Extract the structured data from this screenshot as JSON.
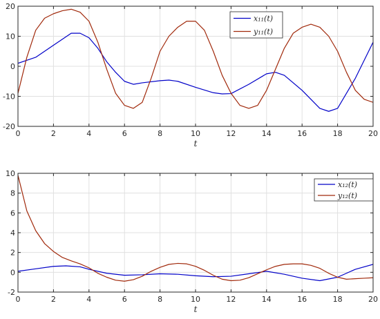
{
  "chart_data": [
    {
      "type": "line",
      "xlabel": "t",
      "ylabel": "",
      "xlim": [
        0,
        20
      ],
      "ylim": [
        -20,
        20
      ],
      "xticks": [
        0,
        2,
        4,
        6,
        8,
        10,
        12,
        14,
        16,
        18,
        20
      ],
      "yticks": [
        -20,
        -10,
        0,
        10,
        20
      ],
      "grid": true,
      "legend_position": "top-right",
      "series": [
        {
          "name": "x₁₁(t)",
          "color": "#0000c8",
          "x": [
            0,
            1,
            2,
            3,
            3.5,
            4,
            4.5,
            5,
            5.5,
            6,
            6.5,
            7,
            8,
            8.5,
            9,
            10,
            11,
            11.5,
            12,
            13,
            14,
            14.5,
            15,
            16,
            17,
            17.5,
            18,
            19,
            20
          ],
          "y": [
            1,
            3,
            7,
            11,
            11,
            9.5,
            6,
            1.5,
            -2,
            -5,
            -6,
            -5.5,
            -4.8,
            -4.6,
            -5,
            -7,
            -8.8,
            -9.2,
            -9.1,
            -6,
            -2.5,
            -2,
            -3,
            -8,
            -14,
            -15,
            -14,
            -4,
            8
          ]
        },
        {
          "name": "y₁₁(t)",
          "color": "#a0280a",
          "x": [
            0,
            0.5,
            1,
            1.5,
            2,
            2.5,
            3,
            3.5,
            4,
            4.5,
            5,
            5.5,
            6,
            6.5,
            7,
            7.5,
            8,
            8.5,
            9,
            9.5,
            10,
            10.5,
            11,
            11.5,
            12,
            12.5,
            13,
            13.5,
            14,
            14.5,
            15,
            15.5,
            16,
            16.5,
            17,
            17.5,
            18,
            18.5,
            19,
            19.5,
            20
          ],
          "y": [
            -9,
            3,
            12,
            16,
            17.5,
            18.5,
            19,
            18,
            15,
            8,
            -1,
            -9,
            -13,
            -14,
            -12,
            -4,
            5,
            10,
            13,
            15,
            15,
            12,
            5,
            -3,
            -9,
            -13,
            -14,
            -13,
            -8,
            -1,
            6,
            11,
            13,
            14,
            13,
            10,
            5,
            -2,
            -8,
            -11,
            -12
          ]
        }
      ]
    },
    {
      "type": "line",
      "xlabel": "t",
      "ylabel": "",
      "xlim": [
        0,
        20
      ],
      "ylim": [
        -2,
        10
      ],
      "xticks": [
        0,
        2,
        4,
        6,
        8,
        10,
        12,
        14,
        16,
        18,
        20
      ],
      "yticks": [
        -2,
        0,
        2,
        4,
        6,
        8,
        10
      ],
      "grid": true,
      "legend_position": "top-right",
      "series": [
        {
          "name": "x₁₂(t)",
          "color": "#0000c8",
          "x": [
            0,
            1,
            2,
            2.7,
            3.5,
            4,
            5,
            6,
            7,
            8,
            9,
            10,
            11,
            12,
            13,
            14,
            15,
            16,
            17,
            18,
            19,
            20
          ],
          "y": [
            0.1,
            0.35,
            0.6,
            0.65,
            0.55,
            0.3,
            -0.1,
            -0.3,
            -0.25,
            -0.15,
            -0.2,
            -0.35,
            -0.45,
            -0.4,
            -0.15,
            0.1,
            -0.2,
            -0.6,
            -0.85,
            -0.5,
            0.3,
            0.8
          ]
        },
        {
          "name": "y₁₂(t)",
          "color": "#a0280a",
          "x": [
            0,
            0.5,
            1,
            1.5,
            2,
            2.5,
            3,
            3.5,
            4,
            4.5,
            5,
            5.5,
            6,
            6.5,
            7,
            7.5,
            8,
            8.5,
            9,
            9.5,
            10,
            10.5,
            11,
            11.5,
            12,
            12.5,
            13,
            13.5,
            14,
            14.5,
            15,
            15.5,
            16,
            16.5,
            17,
            17.5,
            18,
            18.5,
            19,
            19.5,
            20
          ],
          "y": [
            9.8,
            6.2,
            4.2,
            2.9,
            2.1,
            1.5,
            1.15,
            0.85,
            0.45,
            -0.1,
            -0.5,
            -0.8,
            -0.9,
            -0.75,
            -0.4,
            0.1,
            0.5,
            0.8,
            0.9,
            0.85,
            0.6,
            0.2,
            -0.3,
            -0.7,
            -0.85,
            -0.8,
            -0.55,
            -0.15,
            0.25,
            0.6,
            0.8,
            0.85,
            0.85,
            0.7,
            0.4,
            -0.1,
            -0.5,
            -0.7,
            -0.65,
            -0.6,
            -0.55
          ]
        }
      ]
    }
  ]
}
